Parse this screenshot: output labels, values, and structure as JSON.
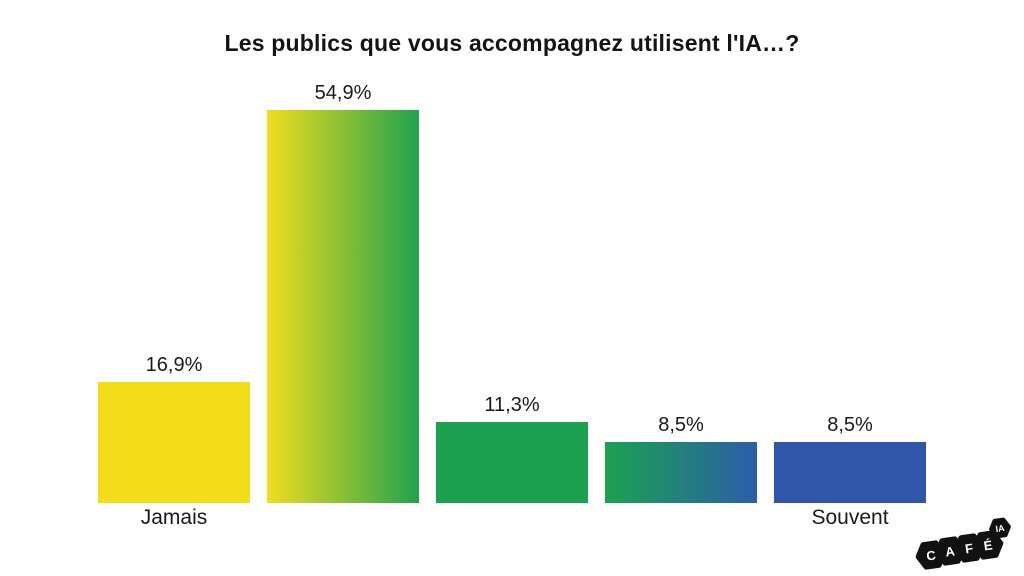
{
  "title": "Les publics que vous accompagnez utilisent l'IA…?",
  "chart_data": {
    "type": "bar",
    "title": "Les publics que vous accompagnez utilisent l'IA…?",
    "categories": [
      "Jamais",
      "",
      "",
      "",
      "Souvent"
    ],
    "values": [
      16.9,
      54.9,
      11.3,
      8.5,
      8.5
    ],
    "value_labels": [
      "16,9%",
      "54,9%",
      "11,3%",
      "8,5%",
      "8,5%"
    ],
    "xlabel": "",
    "ylabel": "",
    "ylim": [
      0,
      57
    ],
    "grid": false,
    "legend": false,
    "axis_lines": false,
    "value_label_format": "percent, French decimal comma",
    "scale_note": "Likert scale from Jamais (never) to Souvent (often)",
    "bar_colors": [
      {
        "from": "#F3DC18",
        "to": "#F3DC18"
      },
      {
        "from": "#F0DD1E",
        "to": "#21A24D"
      },
      {
        "from": "#1BA150",
        "to": "#1BA150"
      },
      {
        "from": "#1BA24F",
        "to": "#2C5DAA"
      },
      {
        "from": "#2F56A8",
        "to": "#2F56A8"
      }
    ]
  },
  "colors": {
    "background": "#ffffff",
    "text": "#141414",
    "yellow": "#F3DC18",
    "green": "#1BA150",
    "blue": "#2F56A8",
    "logo_black": "#111111"
  },
  "logo": {
    "letters": [
      "C",
      "A",
      "F",
      "É"
    ],
    "badge": "IA"
  }
}
